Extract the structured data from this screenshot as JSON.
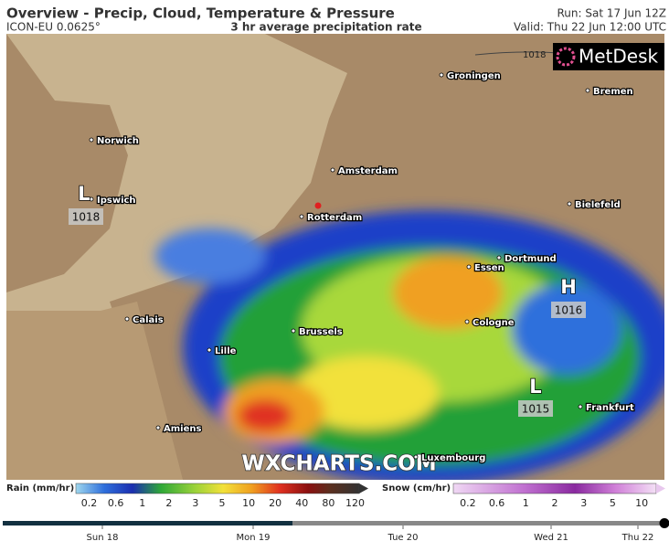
{
  "header": {
    "title": "Overview - Precip, Cloud, Temperature & Pressure",
    "model": "ICON-EU 0.0625°",
    "subtitle": "3 hr average precipitation rate",
    "run": "Run: Sat 17 Jun 12Z",
    "valid": "Valid: Thu 22 Jun 12:00 UTC"
  },
  "map": {
    "isobar_label": 1018,
    "logo": "MetDesk",
    "watermark": "WXCHARTS.COM",
    "cities": [
      "Groningen",
      "Bremen",
      "Norwich",
      "Amsterdam",
      "Ipswich",
      "Bielefeld",
      "Rotterdam",
      "Dortmund",
      "Essen",
      "Calais",
      "Brussels",
      "Cologne",
      "Lille",
      "Frankfurt",
      "Amiens",
      "Luxembourg"
    ],
    "pressure_centers": [
      {
        "label": "L",
        "value": 1018
      },
      {
        "label": "H",
        "value": 1016
      },
      {
        "label": "L",
        "value": 1015
      }
    ]
  },
  "legend": {
    "rain": {
      "title": "Rain (mm/hr)",
      "ticks": [
        0.2,
        0.6,
        1,
        2,
        3,
        5,
        10,
        20,
        40,
        80,
        120
      ]
    },
    "snow": {
      "title": "Snow (cm/hr)",
      "ticks": [
        0.2,
        0.6,
        1,
        2,
        3,
        5,
        10
      ]
    }
  },
  "timeline": {
    "days": [
      "Sun 18",
      "Mon 19",
      "Tue 20",
      "Wed 21",
      "Thu 22"
    ]
  }
}
